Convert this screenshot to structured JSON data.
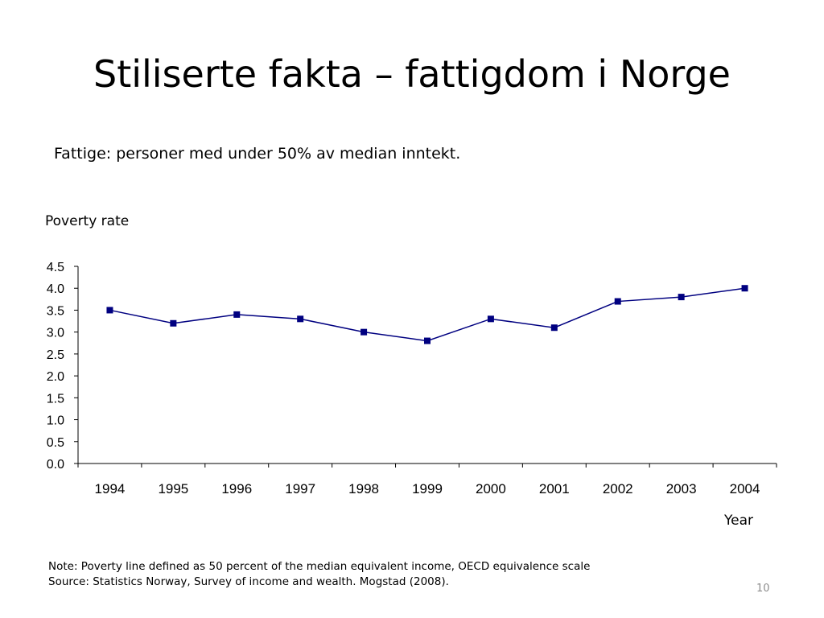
{
  "slide": {
    "title": "Stiliserte fakta – fattigdom i Norge",
    "subtitle": "Fattige: personer med under 50% av median inntekt.",
    "note": "Note: Poverty line defined as 50 percent of the median equivalent income, OECD equivalence scale",
    "source": "Source: Statistics Norway, Survey of income and wealth. Mogstad (2008).",
    "page_number": "10"
  },
  "chart_data": {
    "type": "line",
    "ylabel": "Poverty rate",
    "xlabel": "Year",
    "categories": [
      "1994",
      "1995",
      "1996",
      "1997",
      "1998",
      "1999",
      "2000",
      "2001",
      "2002",
      "2003",
      "2004"
    ],
    "series": [
      {
        "values": [
          3.5,
          3.2,
          3.4,
          3.3,
          3.0,
          2.8,
          3.3,
          3.1,
          3.7,
          3.8,
          4.0
        ]
      }
    ],
    "ylim": [
      0,
      4.5
    ],
    "yticks": [
      "0.0",
      "0.5",
      "1.0",
      "1.5",
      "2.0",
      "2.5",
      "3.0",
      "3.5",
      "4.0",
      "4.5"
    ],
    "line_color": "#000080",
    "marker": "square",
    "grid": false
  }
}
